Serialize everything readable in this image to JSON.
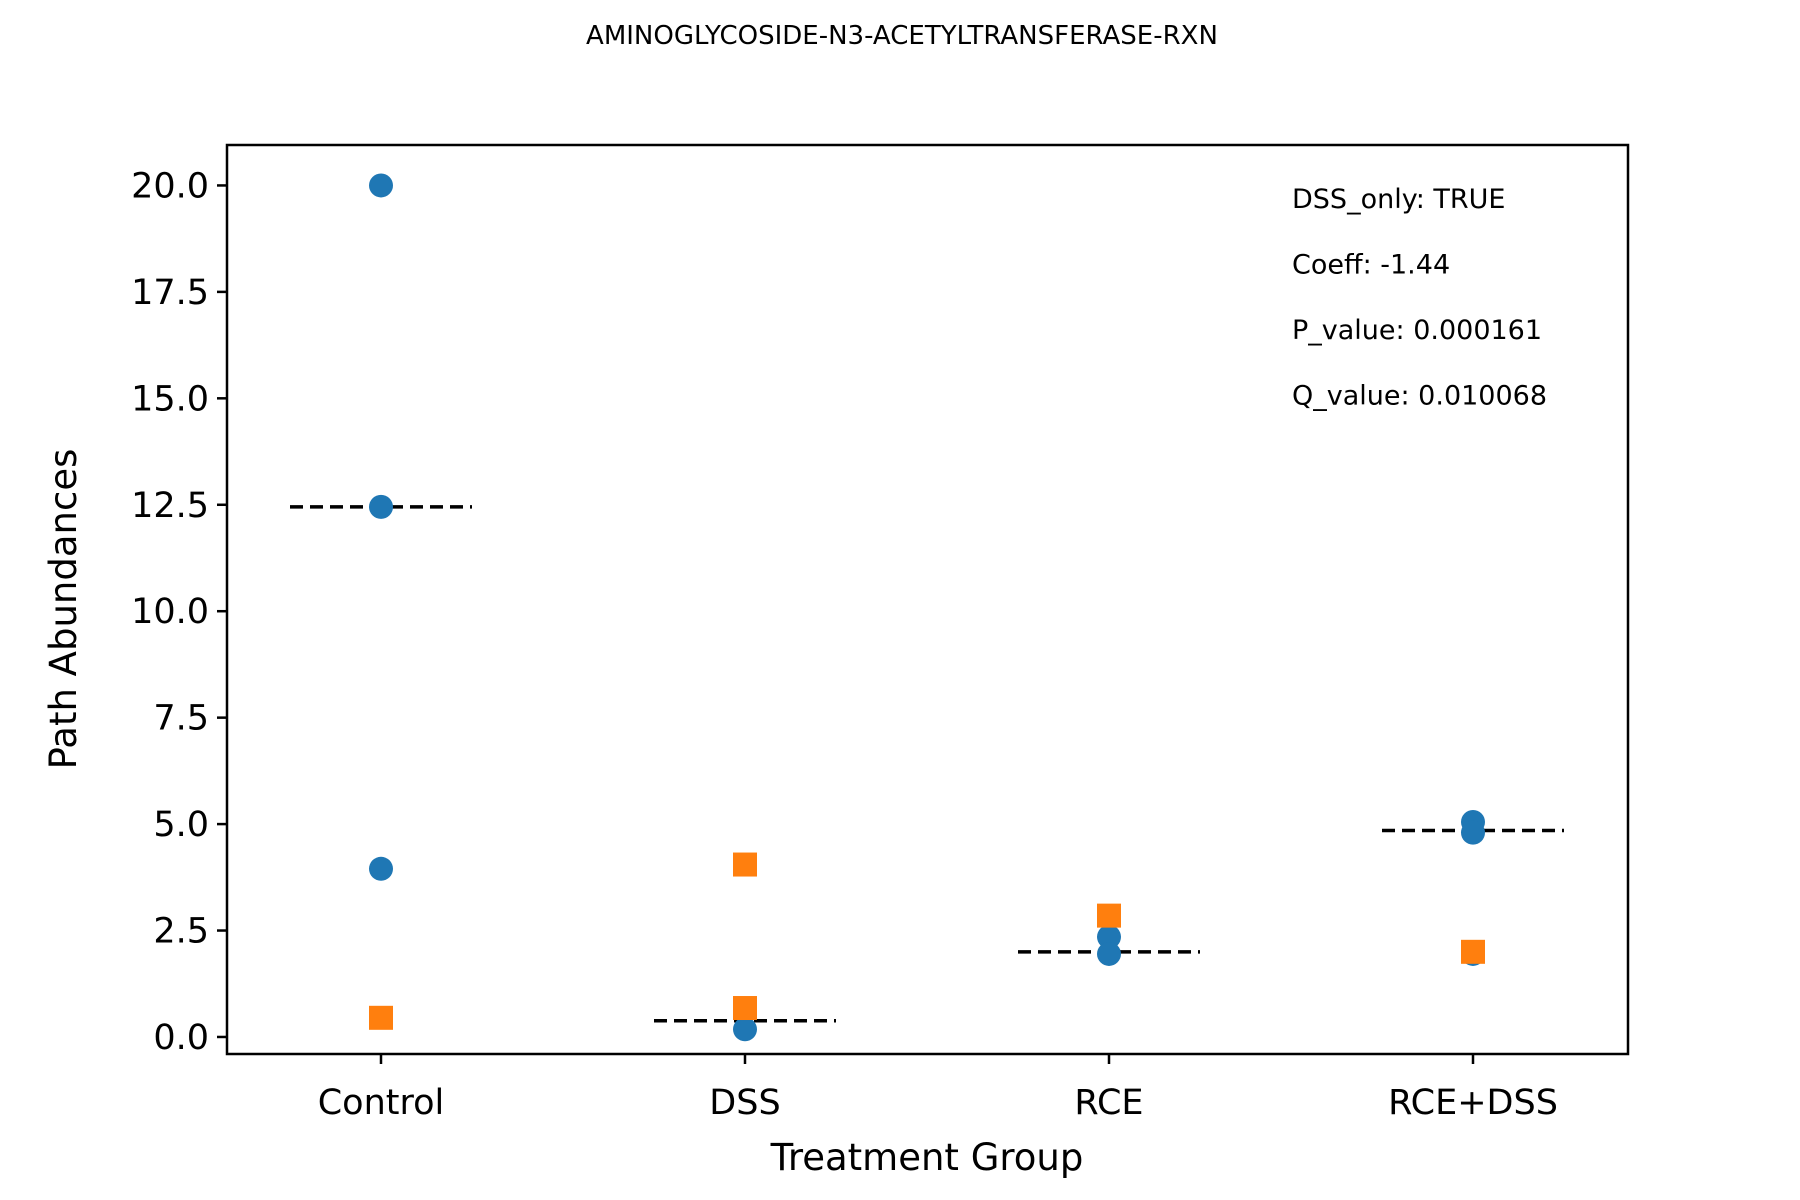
{
  "chart_data": {
    "type": "scatter",
    "title": "AMINOGLYCOSIDE-N3-ACETYLTRANSFERASE-RXN",
    "xlabel": "Treatment Group",
    "ylabel": "Path Abundances",
    "categories": [
      "Control",
      "DSS",
      "RCE",
      "RCE+DSS"
    ],
    "ylim": [
      -0.4,
      20.95
    ],
    "yticks": [
      "0.0",
      "2.5",
      "5.0",
      "7.5",
      "10.0",
      "12.5",
      "15.0",
      "17.5",
      "20.0"
    ],
    "grid": false,
    "series": [
      {
        "marker": "circle",
        "color": "#1f77b4",
        "points": [
          {
            "category": "Control",
            "y": 20.0
          },
          {
            "category": "Control",
            "y": 12.45
          },
          {
            "category": "Control",
            "y": 3.95
          },
          {
            "category": "DSS",
            "y": 0.18
          },
          {
            "category": "RCE",
            "y": 2.35
          },
          {
            "category": "RCE",
            "y": 1.95
          },
          {
            "category": "RCE+DSS",
            "y": 5.05
          },
          {
            "category": "RCE+DSS",
            "y": 4.8
          },
          {
            "category": "RCE+DSS",
            "y": 1.95
          }
        ]
      },
      {
        "marker": "square",
        "color": "#ff7f0e",
        "points": [
          {
            "category": "Control",
            "y": 0.45
          },
          {
            "category": "DSS",
            "y": 4.05
          },
          {
            "category": "DSS",
            "y": 0.68
          },
          {
            "category": "RCE",
            "y": 2.85
          },
          {
            "category": "RCE+DSS",
            "y": 2.0
          }
        ]
      }
    ],
    "median_lines": [
      {
        "category": "Control",
        "y": 12.45
      },
      {
        "category": "DSS",
        "y": 0.38
      },
      {
        "category": "RCE",
        "y": 2.0
      },
      {
        "category": "RCE+DSS",
        "y": 4.85
      }
    ],
    "annotations": [
      "DSS_only: TRUE",
      "Coeff: -1.44",
      "P_value: 0.000161",
      "Q_value: 0.010068"
    ]
  }
}
